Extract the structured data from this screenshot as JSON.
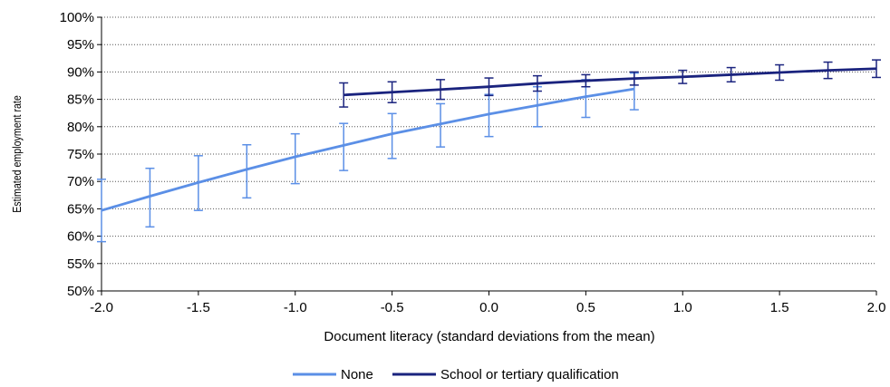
{
  "chart_data": {
    "type": "line",
    "xlabel": "Document literacy (standard deviations from the mean)",
    "ylabel": "Estimated employment rate",
    "xlim": [
      -2.0,
      2.0
    ],
    "ylim": [
      50,
      100
    ],
    "x_ticks": [
      "-2.0",
      "-1.5",
      "-1.0",
      "-0.5",
      "0.0",
      "0.5",
      "1.0",
      "1.5",
      "2.0"
    ],
    "y_ticks": [
      "50%",
      "55%",
      "60%",
      "65%",
      "70%",
      "75%",
      "80%",
      "85%",
      "90%",
      "95%",
      "100%"
    ],
    "grid": "horizontal-dotted",
    "legend_position": "bottom",
    "series": [
      {
        "name": "None",
        "color": "#5B8FE6",
        "x": [
          -2.0,
          -1.75,
          -1.5,
          -1.25,
          -1.0,
          -0.75,
          -0.5,
          -0.25,
          0.0,
          0.25,
          0.5,
          0.75
        ],
        "y": [
          64.7,
          67.3,
          69.8,
          72.2,
          74.5,
          76.6,
          78.7,
          80.5,
          82.3,
          83.9,
          85.5,
          86.9
        ],
        "upper": [
          70.4,
          72.4,
          74.7,
          76.7,
          78.7,
          80.6,
          82.4,
          84.2,
          85.9,
          87.3,
          88.6,
          89.8
        ],
        "lower": [
          59.0,
          61.7,
          64.7,
          67.0,
          69.6,
          72.0,
          74.2,
          76.3,
          78.2,
          80.0,
          81.7,
          83.1
        ]
      },
      {
        "name": "School or tertiary qualification",
        "color": "#1A237E",
        "x": [
          -0.75,
          -0.5,
          -0.25,
          0.0,
          0.25,
          0.5,
          0.75,
          1.0,
          1.25,
          1.5,
          1.75,
          2.0
        ],
        "y": [
          85.8,
          86.3,
          86.8,
          87.3,
          87.9,
          88.4,
          88.8,
          89.1,
          89.5,
          89.9,
          90.3,
          90.6
        ],
        "upper": [
          88.0,
          88.2,
          88.6,
          88.9,
          89.3,
          89.5,
          90.0,
          90.3,
          90.8,
          91.3,
          91.8,
          92.2
        ],
        "lower": [
          83.6,
          84.4,
          85.0,
          85.7,
          86.5,
          87.3,
          87.6,
          87.9,
          88.2,
          88.5,
          88.8,
          89.0
        ]
      }
    ]
  }
}
